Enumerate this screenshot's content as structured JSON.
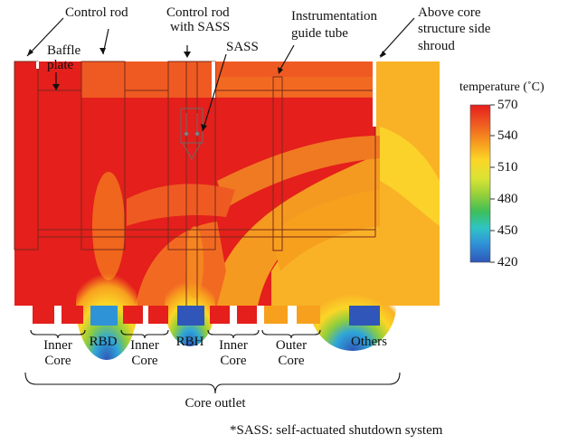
{
  "callouts": {
    "control_rod": "Control rod",
    "baffle_line1": "Baffle",
    "baffle_line2": "plate",
    "control_rod_sass_line1": "Control rod",
    "control_rod_sass_line2": "with SASS",
    "sass": "SASS",
    "instr_line1": "Instrumentation",
    "instr_line2": "guide tube",
    "above_line1": "Above core",
    "above_line2": "structure side",
    "above_line3": "shroud"
  },
  "legend": {
    "title": "temperature (˚C)",
    "ticks": [
      "570",
      "540",
      "510",
      "480",
      "450",
      "420"
    ],
    "colors": [
      "#e41f1c",
      "#ef5a22",
      "#f7a01e",
      "#fbd627",
      "#d9e334",
      "#8fce3c",
      "#3cbf5a",
      "#2fc4c4",
      "#2f93d8",
      "#2f56b8"
    ]
  },
  "regions": [
    {
      "line1": "Inner",
      "line2": "Core"
    },
    {
      "line1": "RBD",
      "line2": ""
    },
    {
      "line1": "Inner",
      "line2": "Core"
    },
    {
      "line1": "RBH",
      "line2": ""
    },
    {
      "line1": "Inner",
      "line2": "Core"
    },
    {
      "line1": "Outer",
      "line2": "Core"
    },
    {
      "line1": "Others",
      "line2": ""
    }
  ],
  "core_outlet": "Core outlet",
  "footnote": "*SASS: self-actuated shutdown system"
}
